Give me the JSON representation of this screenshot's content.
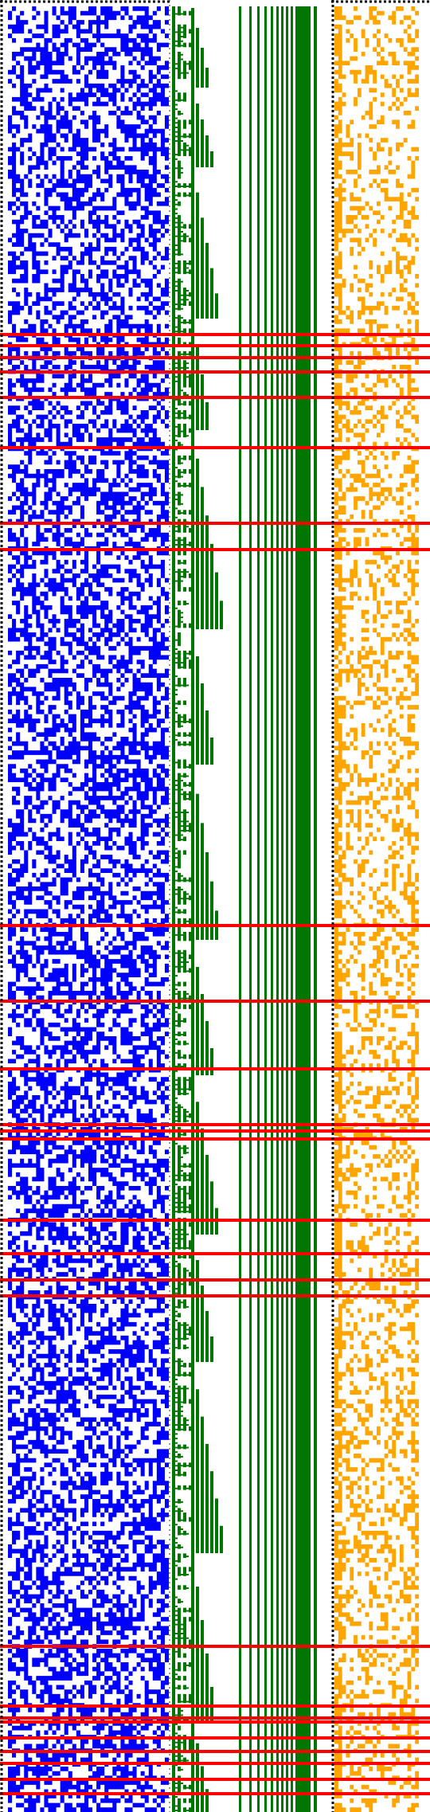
{
  "colors": {
    "background": "#ffffff",
    "left_matrix": "#0000ff",
    "tree": "#007700",
    "right_matrix": "#ffa500",
    "highlight": "#ff0000",
    "border": "#000000"
  },
  "matrix_left": {
    "columns": 40,
    "rows": 398,
    "fill_ratio": 0.5
  },
  "matrix_right": {
    "columns": 22,
    "rows": 398,
    "fill_ratio": 0.3
  },
  "tree": {
    "vertical_lines": 19
  },
  "highlight_rows": 27
}
